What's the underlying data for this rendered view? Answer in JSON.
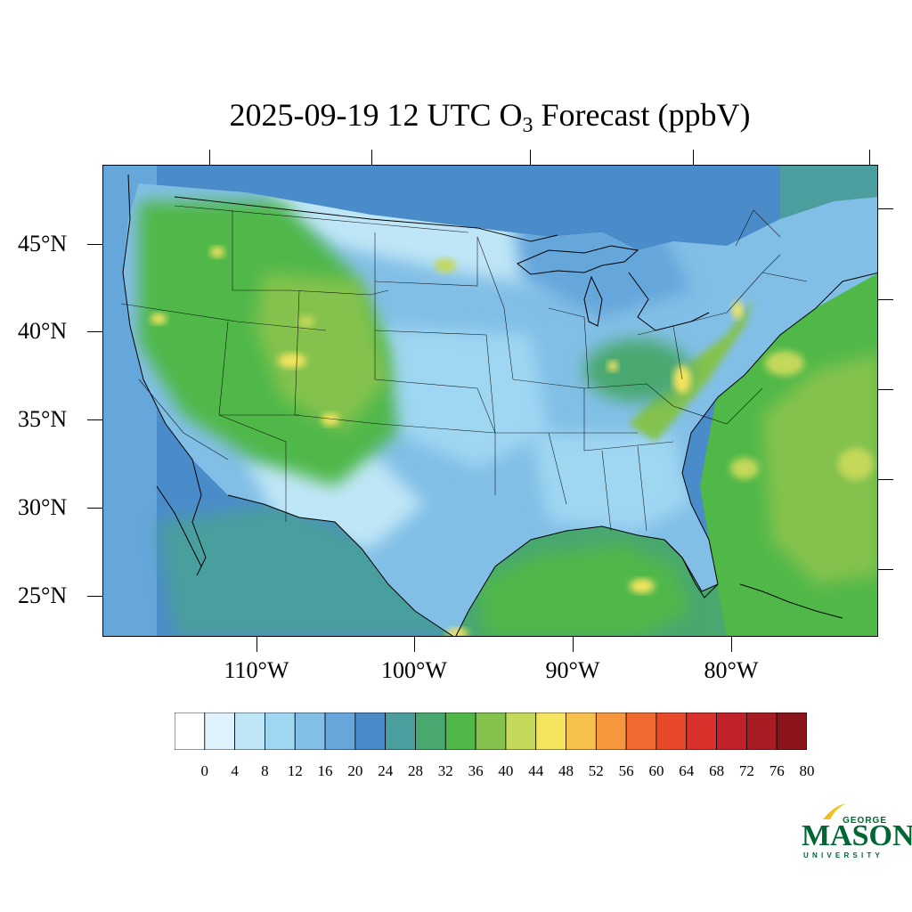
{
  "title": {
    "prefix": "2025-09-19 12 UTC O",
    "subscript": "3",
    "suffix": " Forecast (ppbV)"
  },
  "map": {
    "type": "filled-contour-map",
    "region": "Continental United States",
    "variable": "O3",
    "units": "ppbV",
    "lat_labels": [
      "45°N",
      "40°N",
      "35°N",
      "30°N",
      "25°N"
    ],
    "lon_labels": [
      "110°W",
      "100°W",
      "90°W",
      "80°W"
    ],
    "dominant_values": {
      "rocky_mountains_interior_west": "32-44",
      "plains_and_midwest": "12-24",
      "gulf_of_mexico": "28-40",
      "atlantic_ocean_southeast": "32-44",
      "appalachian_ridges": "40-48",
      "pacific_ocean": "16-24"
    }
  },
  "colorbar": {
    "levels": [
      0,
      4,
      8,
      12,
      16,
      20,
      24,
      28,
      32,
      36,
      40,
      44,
      48,
      52,
      56,
      60,
      64,
      68,
      72,
      76,
      80
    ],
    "labels": [
      "0",
      "4",
      "8",
      "12",
      "16",
      "20",
      "24",
      "28",
      "32",
      "36",
      "40",
      "44",
      "48",
      "52",
      "56",
      "60",
      "64",
      "68",
      "72",
      "76",
      "80"
    ],
    "colors": [
      "#ffffff",
      "#dff2fb",
      "#bfe6f7",
      "#9fd6f2",
      "#82bfe6",
      "#65a6db",
      "#4a8cca",
      "#4a9e9e",
      "#48a870",
      "#50b848",
      "#84c24e",
      "#c4d85a",
      "#f4e45e",
      "#f7bf4b",
      "#f6973d",
      "#f26a30",
      "#e8492b",
      "#d9302c",
      "#c1222a",
      "#a81b22",
      "#8c141c"
    ]
  },
  "logo": {
    "line1": "GEORGE",
    "line2": "MASON",
    "line3": "UNIVERSITY"
  }
}
